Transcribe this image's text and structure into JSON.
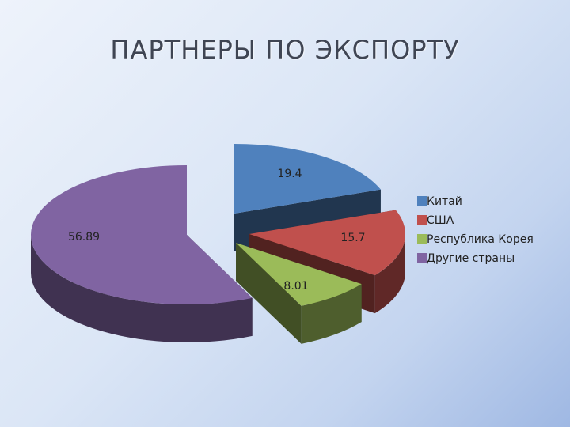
{
  "title": "ПАРТНЕРЫ ПО ЭКСПОРТУ",
  "chart_data": {
    "type": "pie",
    "title": "ПАРТНЕРЫ ПО ЭКСПОРТУ",
    "three_d": true,
    "exploded": true,
    "legend_position": "right",
    "slices": [
      {
        "name": "Китай",
        "value": 19.4,
        "label": "19.4",
        "color": "#4f81bd"
      },
      {
        "name": "США",
        "value": 15.7,
        "label": "15.7",
        "color": "#c0504d"
      },
      {
        "name": "Республика Корея",
        "value": 8.01,
        "label": "8.01",
        "color": "#9bbb59"
      },
      {
        "name": "Другие страны",
        "value": 56.89,
        "label": "56.89",
        "color": "#8064a2"
      }
    ]
  }
}
